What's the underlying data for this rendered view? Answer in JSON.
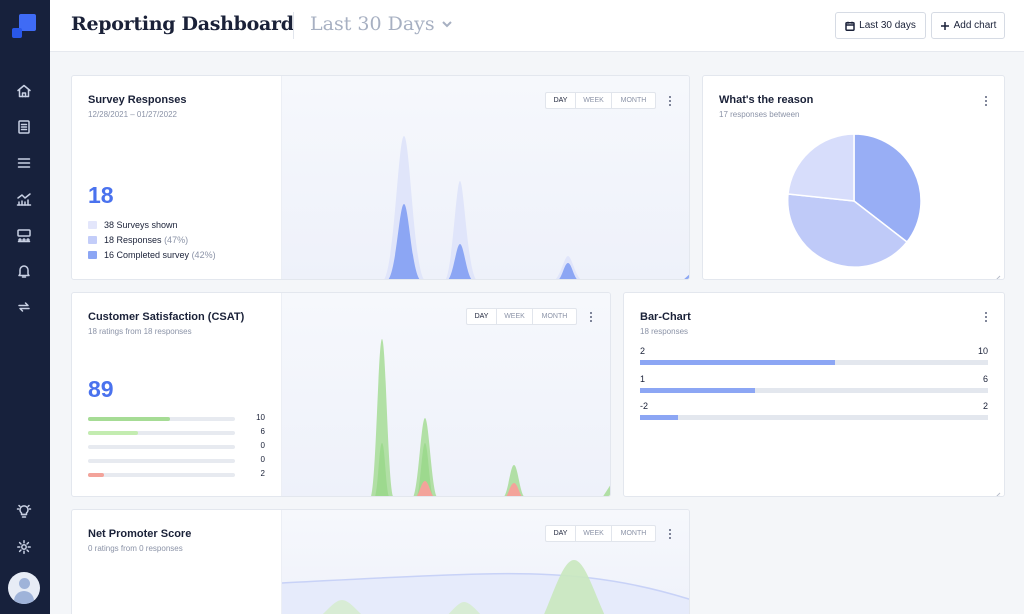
{
  "header": {
    "title": "Reporting Dashboard",
    "range_label": "Last 30 Days",
    "date_button": "Last 30 days",
    "add_chart_button": "Add chart"
  },
  "survey": {
    "title": "Survey Responses",
    "date_range": "12/28/2021 – 01/27/2022",
    "big_number": "18",
    "legend": [
      {
        "label": "38 Surveys shown",
        "pct": "",
        "color": "#e3e6fb"
      },
      {
        "label": "18 Responses",
        "pct": "(47%)",
        "color": "#c3cdf9"
      },
      {
        "label": "16 Completed survey",
        "pct": "(42%)",
        "color": "#8ca6f4"
      }
    ],
    "tabs": {
      "day": "DAY",
      "week": "WEEK",
      "month": "MONTH"
    }
  },
  "reason": {
    "title": "What's the reason",
    "subtitle": "17 responses between"
  },
  "csat": {
    "title": "Customer Satisfaction (CSAT)",
    "subtitle": "18 ratings from 18 responses",
    "big_number": "89",
    "rows": [
      {
        "value": "10",
        "fraction": 0.56,
        "color": "#a6dc95"
      },
      {
        "value": "6",
        "fraction": 0.34,
        "color": "#c3ecb0"
      },
      {
        "value": "0",
        "fraction": 0,
        "color": "#cfe7c9"
      },
      {
        "value": "0",
        "fraction": 0,
        "color": "#f4c8c4"
      },
      {
        "value": "2",
        "fraction": 0.11,
        "color": "#f3a39a"
      }
    ],
    "tabs": {
      "day": "DAY",
      "week": "WEEK",
      "month": "MONTH"
    }
  },
  "barchart": {
    "title": "Bar-Chart",
    "subtitle": "18 responses",
    "rows": [
      {
        "label": "2",
        "value": "10",
        "fraction": 0.56
      },
      {
        "label": "1",
        "value": "6",
        "fraction": 0.33
      },
      {
        "label": "-2",
        "value": "2",
        "fraction": 0.11
      }
    ]
  },
  "nps": {
    "title": "Net Promoter Score",
    "subtitle": "0 ratings from 0 responses",
    "tabs": {
      "day": "DAY",
      "week": "WEEK",
      "month": "MONTH"
    }
  },
  "colors": {
    "accent": "#4a72ee",
    "sidebar": "#17213c",
    "pie_light": "#d7ddfb",
    "pie_mid": "#bfcaf8",
    "pie_dark": "#98aef5"
  }
}
